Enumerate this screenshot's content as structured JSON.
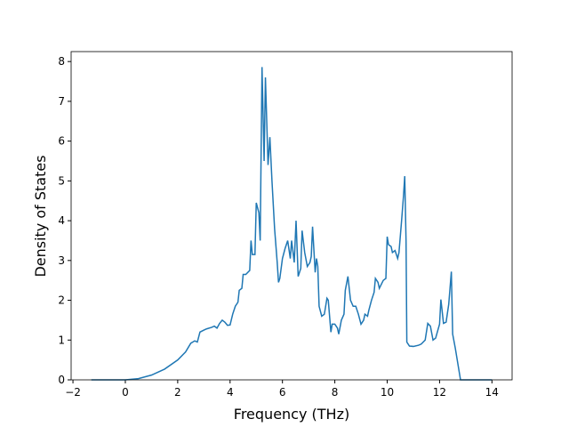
{
  "chart_data": {
    "type": "line",
    "xlabel": "Frequency (THz)",
    "ylabel": "Density of States",
    "x": [
      -1.3,
      0,
      0.5,
      1,
      1.5,
      2,
      2.3,
      2.5,
      2.65,
      2.75,
      2.85,
      3,
      3.1,
      3.3,
      3.4,
      3.5,
      3.6,
      3.7,
      3.8,
      3.9,
      4,
      4.1,
      4.2,
      4.3,
      4.35,
      4.45,
      4.5,
      4.6,
      4.75,
      4.8,
      4.85,
      4.95,
      5.0,
      5.1,
      5.15,
      5.22,
      5.3,
      5.35,
      5.45,
      5.52,
      5.6,
      5.7,
      5.8,
      5.85,
      5.9,
      6.0,
      6.1,
      6.2,
      6.3,
      6.35,
      6.45,
      6.52,
      6.6,
      6.7,
      6.75,
      6.85,
      6.95,
      7.05,
      7.1,
      7.15,
      7.25,
      7.3,
      7.35,
      7.4,
      7.5,
      7.6,
      7.7,
      7.75,
      7.85,
      7.9,
      8.0,
      8.1,
      8.15,
      8.25,
      8.35,
      8.4,
      8.5,
      8.6,
      8.7,
      8.8,
      8.9,
      9.0,
      9.1,
      9.15,
      9.25,
      9.3,
      9.4,
      9.5,
      9.55,
      9.65,
      9.7,
      9.85,
      9.95,
      10.0,
      10.05,
      10.15,
      10.2,
      10.3,
      10.35,
      10.4,
      10.45,
      10.55,
      10.62,
      10.67,
      10.72,
      10.75,
      10.85,
      11.0,
      11.2,
      11.3,
      11.45,
      11.55,
      11.65,
      11.75,
      11.85,
      12.0,
      12.05,
      12.15,
      12.25,
      12.35,
      12.45,
      12.5,
      12.6,
      12.7,
      12.8,
      13,
      14
    ],
    "series": [
      {
        "color": "#1f77b4",
        "values": [
          0,
          0,
          0.03,
          0.12,
          0.27,
          0.5,
          0.7,
          0.92,
          0.98,
          0.95,
          1.2,
          1.25,
          1.28,
          1.32,
          1.35,
          1.3,
          1.42,
          1.5,
          1.45,
          1.37,
          1.38,
          1.65,
          1.85,
          1.95,
          2.25,
          2.3,
          2.65,
          2.65,
          2.75,
          3.5,
          3.15,
          3.15,
          4.45,
          4.2,
          3.5,
          7.86,
          5.5,
          7.6,
          5.4,
          6.1,
          5.0,
          3.8,
          2.95,
          2.45,
          2.55,
          3.05,
          3.3,
          3.5,
          3.05,
          3.5,
          2.95,
          4.0,
          2.6,
          2.8,
          3.75,
          3.2,
          2.85,
          2.95,
          3.1,
          3.85,
          2.7,
          3.05,
          2.85,
          1.85,
          1.6,
          1.65,
          2.05,
          2.0,
          1.2,
          1.4,
          1.4,
          1.3,
          1.15,
          1.5,
          1.65,
          2.25,
          2.6,
          2.0,
          1.85,
          1.85,
          1.65,
          1.4,
          1.5,
          1.65,
          1.6,
          1.75,
          2.0,
          2.2,
          2.55,
          2.45,
          2.3,
          2.5,
          2.55,
          3.6,
          3.4,
          3.35,
          3.2,
          3.25,
          3.15,
          3.05,
          3.2,
          4.0,
          4.6,
          5.12,
          3.5,
          0.95,
          0.85,
          0.84,
          0.87,
          0.9,
          1.0,
          1.42,
          1.35,
          1.0,
          1.05,
          1.4,
          2.02,
          1.42,
          1.45,
          1.9,
          2.72,
          1.15,
          0.8,
          0.4,
          0,
          0,
          0
        ]
      }
    ],
    "xlim": [
      -2.07,
      14.77
    ],
    "ylim": [
      0,
      8.25
    ],
    "xticks": [
      {
        "value": -2,
        "label": "−2"
      },
      0,
      2,
      4,
      6,
      8,
      10,
      12,
      14
    ],
    "yticks": [
      0,
      1,
      2,
      3,
      4,
      5,
      6,
      7,
      8
    ]
  }
}
